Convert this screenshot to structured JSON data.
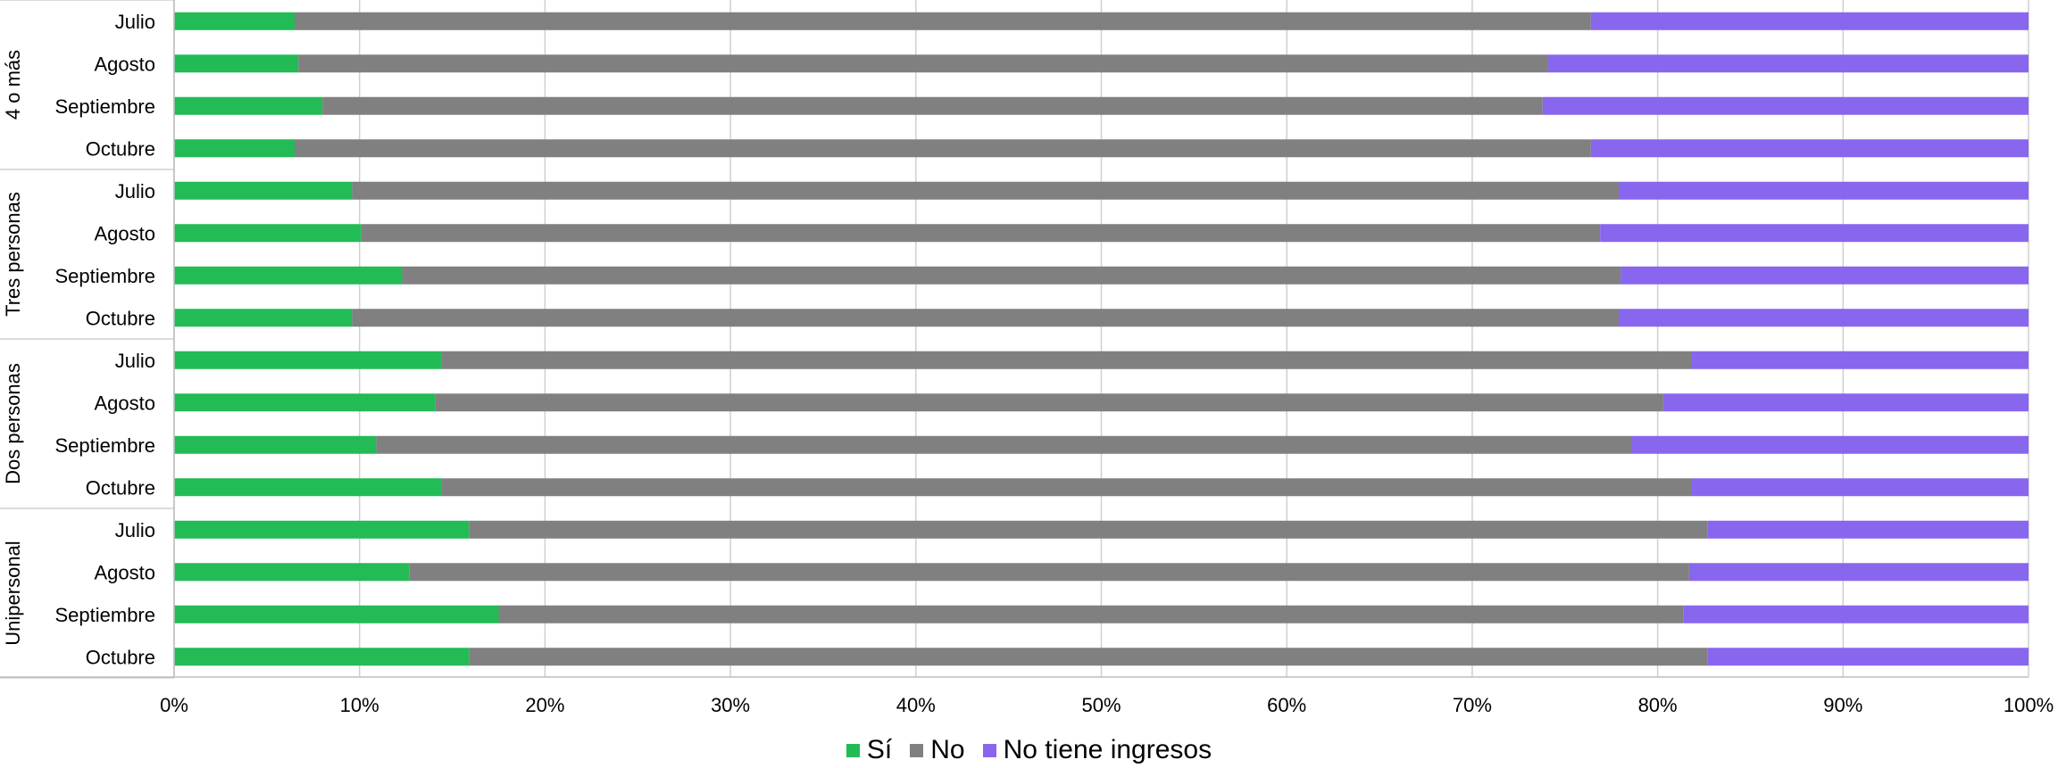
{
  "chart_data": {
    "type": "bar",
    "orientation": "horizontal",
    "stacking": "percent",
    "groups": [
      {
        "name": "4 o más",
        "categories": [
          "Julio",
          "Agosto",
          "Septiembre",
          "Octubre"
        ]
      },
      {
        "name": "Tres personas",
        "categories": [
          "Julio",
          "Agosto",
          "Septiembre",
          "Octubre"
        ]
      },
      {
        "name": "Dos personas",
        "categories": [
          "Julio",
          "Agosto",
          "Septiembre",
          "Octubre"
        ]
      },
      {
        "name": "Unipersonal",
        "categories": [
          "Julio",
          "Agosto",
          "Septiembre",
          "Octubre"
        ]
      }
    ],
    "series": [
      {
        "name": "Sí",
        "color": "#22bb55",
        "values": [
          6.5,
          6.7,
          8.0,
          6.5,
          9.6,
          10.1,
          12.3,
          9.6,
          14.4,
          14.1,
          10.9,
          14.4,
          15.9,
          12.7,
          17.5,
          15.9
        ]
      },
      {
        "name": "No",
        "color": "#808080",
        "values": [
          69.9,
          67.4,
          65.8,
          69.9,
          68.3,
          66.8,
          65.7,
          68.3,
          67.4,
          66.2,
          67.7,
          67.4,
          66.8,
          69.0,
          63.9,
          66.8
        ]
      },
      {
        "name": "No tiene ingresos",
        "color": "#8866ee",
        "values": [
          23.6,
          25.9,
          26.2,
          23.6,
          22.1,
          23.1,
          22.0,
          22.1,
          18.2,
          19.7,
          21.4,
          18.2,
          17.3,
          18.3,
          18.6,
          17.3
        ]
      }
    ],
    "x_ticks": [
      "0%",
      "10%",
      "20%",
      "30%",
      "40%",
      "50%",
      "60%",
      "70%",
      "80%",
      "90%",
      "100%"
    ],
    "xlim": [
      0,
      100
    ],
    "grid": true,
    "legend_position": "bottom"
  }
}
